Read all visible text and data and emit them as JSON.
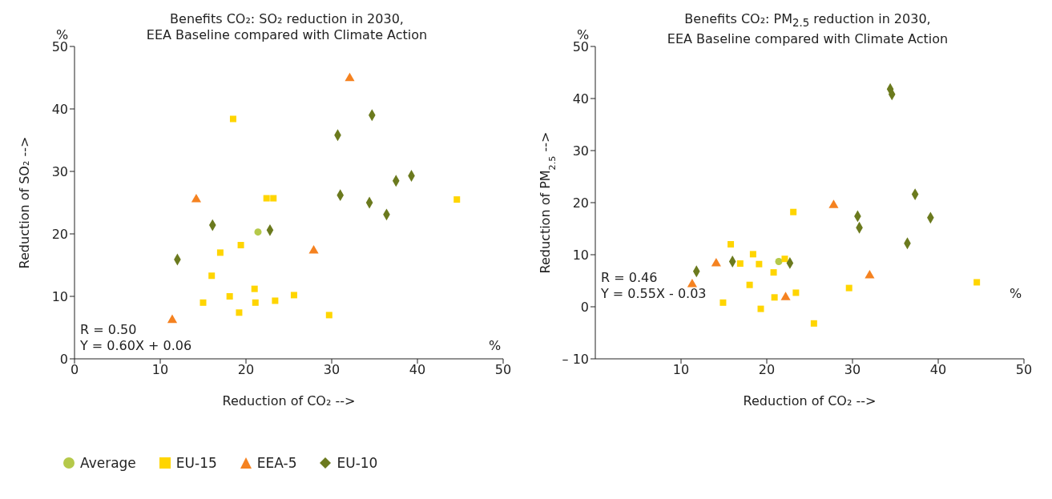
{
  "chart_data": [
    {
      "type": "scatter",
      "title": "Benefits CO₂: SO₂ reduction in 2030,\nEEA Baseline compared with Climate Action",
      "xlabel": "Reduction of CO₂ -->",
      "ylabel": "Reduction of SO₂ -->",
      "xlim": [
        0,
        50
      ],
      "xticks": [
        0,
        10,
        20,
        30,
        40,
        50
      ],
      "ylim": [
        0,
        50
      ],
      "yticks": [
        0,
        10,
        20,
        30,
        40,
        50
      ],
      "grid": false,
      "legend": "bottom left",
      "annotations": [
        "%",
        "%",
        "R = 0.50",
        "Y = 0.60X + 0.06"
      ],
      "series": [
        {
          "name": "Average",
          "color": "#b5c94a",
          "marker": "circle",
          "x": [
            21.4
          ],
          "values": [
            20.3
          ]
        },
        {
          "name": "EU-15",
          "color": "#ffd500",
          "marker": "square",
          "x": [
            18.5,
            22.4,
            23.2,
            44.6,
            19.4,
            17.0,
            16.0,
            21.0,
            18.1,
            25.6,
            15.0,
            21.1,
            23.4,
            19.2,
            29.7
          ],
          "values": [
            38.4,
            25.7,
            25.7,
            25.5,
            18.2,
            17.0,
            13.3,
            11.2,
            10.0,
            10.2,
            9.0,
            9.0,
            9.3,
            7.4,
            7.0
          ]
        },
        {
          "name": "EEA-5",
          "color": "#f58220",
          "marker": "triangle",
          "x": [
            32.1,
            14.2,
            27.9,
            11.4
          ],
          "values": [
            44.9,
            25.5,
            17.3,
            6.2
          ]
        },
        {
          "name": "EU-10",
          "color": "#6b7a1e",
          "marker": "diamond",
          "x": [
            34.7,
            30.7,
            39.3,
            37.5,
            31.0,
            34.4,
            36.4,
            16.1,
            22.8,
            12.0
          ],
          "values": [
            39.0,
            35.8,
            29.3,
            28.5,
            26.2,
            25.0,
            23.1,
            21.4,
            20.6,
            15.9
          ]
        }
      ]
    },
    {
      "type": "scatter",
      "title": "Benefits CO₂: PM$_{2.5}$ reduction in 2030,\nEEA Baseline compared with Climate Action",
      "xlabel": "Reduction of CO₂ -->",
      "ylabel": "Reduction of PM$_{2.5}$ -->",
      "xlim": [
        0,
        50
      ],
      "xticks": [
        10,
        20,
        30,
        40,
        50
      ],
      "ylim": [
        -10,
        50
      ],
      "yticks": [
        {
          "value": -10,
          "label": "– 10"
        },
        0,
        10,
        20,
        30,
        40,
        50
      ],
      "grid": false,
      "annotations": [
        "%",
        "%",
        "R = 0.46",
        "Y = 0.55X - 0.03"
      ],
      "series": [
        {
          "color": "#b5c94a",
          "marker": "circle",
          "x": [
            21.4
          ],
          "values": [
            8.7
          ]
        },
        {
          "color": "#ffd500",
          "marker": "square",
          "x": [
            23.1,
            15.8,
            18.4,
            16.9,
            19.1,
            22.1,
            20.8,
            18.0,
            20.9,
            23.4,
            29.6,
            14.9,
            19.3,
            25.5,
            44.5
          ],
          "values": [
            18.2,
            12.0,
            10.1,
            8.3,
            8.2,
            9.2,
            6.6,
            4.2,
            1.8,
            2.7,
            3.6,
            0.8,
            -0.4,
            -3.2,
            4.7
          ]
        },
        {
          "color": "#f58220",
          "marker": "triangle",
          "x": [
            27.8,
            14.1,
            32.0,
            11.3,
            22.2
          ],
          "values": [
            19.5,
            8.3,
            6.0,
            4.3,
            1.8
          ]
        },
        {
          "color": "#6b7a1e",
          "marker": "diamond",
          "x": [
            34.4,
            34.6,
            37.3,
            30.6,
            39.1,
            30.8,
            36.4,
            16.0,
            22.7,
            11.8
          ],
          "values": [
            41.8,
            40.8,
            21.6,
            17.4,
            17.1,
            15.2,
            12.2,
            8.7,
            8.4,
            6.8
          ]
        }
      ]
    }
  ]
}
